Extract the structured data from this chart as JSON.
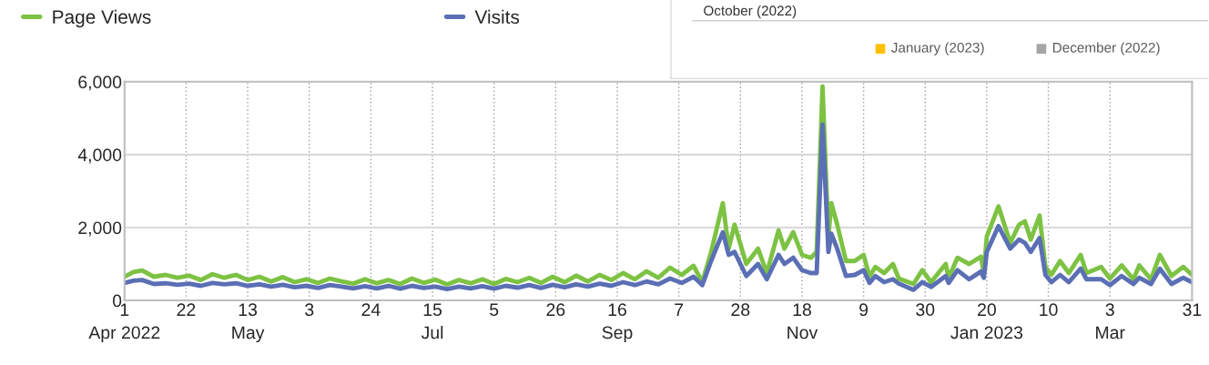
{
  "chart_data": [
    {
      "type": "line",
      "legend": "top left",
      "grid": true,
      "x": [
        "2022-04-01",
        "2022-04-04",
        "2022-04-07",
        "2022-04-11",
        "2022-04-15",
        "2022-04-19",
        "2022-04-23",
        "2022-04-27",
        "2022-05-01",
        "2022-05-05",
        "2022-05-09",
        "2022-05-13",
        "2022-05-17",
        "2022-05-21",
        "2022-05-25",
        "2022-05-29",
        "2022-06-02",
        "2022-06-06",
        "2022-06-10",
        "2022-06-14",
        "2022-06-18",
        "2022-06-22",
        "2022-06-26",
        "2022-06-30",
        "2022-07-04",
        "2022-07-08",
        "2022-07-12",
        "2022-07-16",
        "2022-07-20",
        "2022-07-24",
        "2022-07-28",
        "2022-08-01",
        "2022-08-05",
        "2022-08-09",
        "2022-08-13",
        "2022-08-17",
        "2022-08-21",
        "2022-08-25",
        "2022-08-29",
        "2022-09-02",
        "2022-09-06",
        "2022-09-10",
        "2022-09-14",
        "2022-09-18",
        "2022-09-22",
        "2022-09-26",
        "2022-09-30",
        "2022-10-04",
        "2022-10-08",
        "2022-10-12",
        "2022-10-15",
        "2022-10-18",
        "2022-10-22",
        "2022-10-24",
        "2022-10-26",
        "2022-10-30",
        "2022-11-03",
        "2022-11-06",
        "2022-11-10",
        "2022-11-12",
        "2022-11-15",
        "2022-11-18",
        "2022-11-21",
        "2022-11-23",
        "2022-11-25",
        "2022-11-27",
        "2022-11-28",
        "2022-11-30",
        "2022-12-03",
        "2022-12-06",
        "2022-12-09",
        "2022-12-11",
        "2022-12-13",
        "2022-12-16",
        "2022-12-19",
        "2022-12-21",
        "2022-12-26",
        "2022-12-29",
        "2023-01-01",
        "2023-01-06",
        "2023-01-07",
        "2023-01-10",
        "2023-01-14",
        "2023-01-18",
        "2023-01-19",
        "2023-01-20",
        "2023-01-24",
        "2023-01-28",
        "2023-01-31",
        "2023-02-02",
        "2023-02-04",
        "2023-02-07",
        "2023-02-09",
        "2023-02-11",
        "2023-02-14",
        "2023-02-17",
        "2023-02-21",
        "2023-02-23",
        "2023-02-28",
        "2023-03-03",
        "2023-03-07",
        "2023-03-11",
        "2023-03-13",
        "2023-03-17",
        "2023-03-20",
        "2023-03-24",
        "2023-03-28",
        "2023-03-31"
      ],
      "series": [
        {
          "name": "Page Views",
          "color": "#7dc243",
          "values": [
            650,
            780,
            820,
            650,
            700,
            620,
            680,
            560,
            720,
            620,
            700,
            560,
            650,
            520,
            640,
            500,
            580,
            480,
            600,
            520,
            460,
            580,
            470,
            560,
            450,
            600,
            480,
            570,
            440,
            560,
            470,
            580,
            450,
            590,
            500,
            620,
            480,
            650,
            500,
            680,
            520,
            700,
            560,
            750,
            580,
            800,
            620,
            900,
            700,
            950,
            500,
            1320,
            2670,
            1420,
            2080,
            1000,
            1420,
            750,
            1920,
            1420,
            1870,
            1250,
            1170,
            1330,
            5870,
            1750,
            2670,
            2080,
            1080,
            1080,
            1250,
            650,
            920,
            750,
            1000,
            600,
            450,
            830,
            500,
            1000,
            620,
            1170,
            1000,
            1200,
            750,
            1750,
            2580,
            1580,
            2080,
            2170,
            1670,
            2330,
            920,
            700,
            1080,
            750,
            1250,
            750,
            920,
            600,
            960,
            580,
            960,
            580,
            1250,
            670,
            920,
            700
          ]
        },
        {
          "name": "Visits",
          "color": "#5b6fb5",
          "values": [
            480,
            540,
            560,
            450,
            470,
            430,
            460,
            400,
            480,
            440,
            470,
            400,
            440,
            380,
            430,
            360,
            400,
            340,
            420,
            380,
            330,
            390,
            330,
            400,
            320,
            400,
            340,
            380,
            310,
            380,
            330,
            390,
            320,
            400,
            350,
            420,
            340,
            430,
            360,
            440,
            380,
            460,
            400,
            500,
            420,
            520,
            440,
            600,
            480,
            650,
            420,
            1080,
            1870,
            1250,
            1330,
            670,
            1000,
            580,
            1250,
            1000,
            1170,
            830,
            750,
            750,
            4830,
            1330,
            1830,
            1420,
            670,
            700,
            830,
            480,
            670,
            500,
            580,
            460,
            290,
            500,
            370,
            670,
            480,
            830,
            580,
            790,
            620,
            1330,
            2040,
            1420,
            1670,
            1580,
            1330,
            1710,
            700,
            500,
            700,
            500,
            870,
            580,
            580,
            420,
            670,
            450,
            620,
            450,
            870,
            450,
            620,
            500
          ]
        }
      ],
      "xlim": [
        "2022-04-01",
        "2023-03-31"
      ],
      "xticks": [
        {
          "value": "2022-04-01",
          "label": "1\nApr 2022"
        },
        {
          "value": "2022-04-22",
          "label": "22"
        },
        {
          "value": "2022-05-13",
          "label": "13\nMay"
        },
        {
          "value": "2022-06-03",
          "label": "3"
        },
        {
          "value": "2022-06-24",
          "label": "24"
        },
        {
          "value": "2022-07-15",
          "label": "15\nJul"
        },
        {
          "value": "2022-08-05",
          "label": "5"
        },
        {
          "value": "2022-08-26",
          "label": "26"
        },
        {
          "value": "2022-09-16",
          "label": "16\nSep"
        },
        {
          "value": "2022-10-07",
          "label": "7"
        },
        {
          "value": "2022-10-28",
          "label": "28"
        },
        {
          "value": "2022-11-18",
          "label": "18\nNov"
        },
        {
          "value": "2022-12-09",
          "label": "9"
        },
        {
          "value": "2022-12-30",
          "label": "30"
        },
        {
          "value": "2023-01-20",
          "label": "20\nJan 2023"
        },
        {
          "value": "2023-02-10",
          "label": "10"
        },
        {
          "value": "2023-03-03",
          "label": "3\nMar"
        },
        {
          "value": "2023-03-31",
          "label": "31"
        }
      ],
      "ylim": [
        0,
        6000
      ],
      "yticks": [
        {
          "value": 0,
          "label": "0"
        },
        {
          "value": 2000,
          "label": "2,000"
        },
        {
          "value": 4000,
          "label": "4,000"
        },
        {
          "value": 6000,
          "label": "6,000"
        }
      ]
    },
    {
      "type": "other",
      "categories": [
        "January (2023)",
        "December (2022)"
      ],
      "colors": [
        "#ffc000",
        "#a5a5a5"
      ],
      "annotations": [
        "October (2022)"
      ]
    }
  ]
}
